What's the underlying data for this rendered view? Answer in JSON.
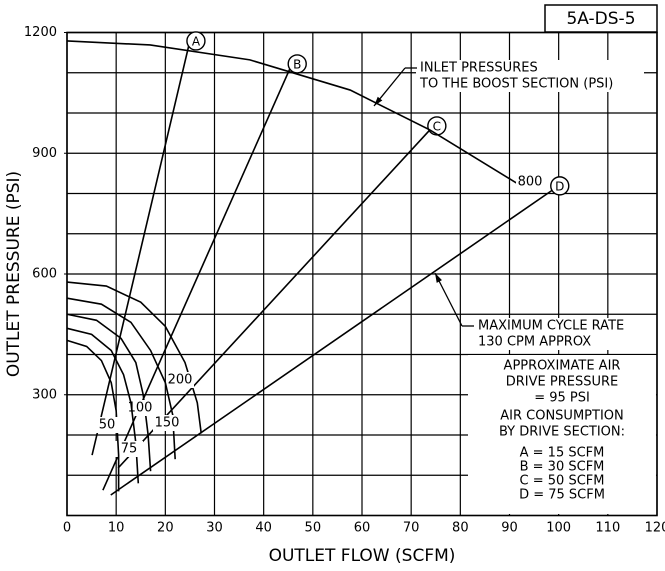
{
  "chart_data": {
    "type": "line",
    "figure_id": "5A-DS-5",
    "x_label": "OUTLET FLOW (SCFM)",
    "y_label": "OUTLET PRESSURE (PSI)",
    "xlim": [
      0,
      120
    ],
    "ylim": [
      0,
      1200
    ],
    "xticks": [
      0,
      10,
      20,
      30,
      40,
      50,
      60,
      70,
      80,
      90,
      100,
      110,
      120
    ],
    "yticks": [
      300,
      600,
      900,
      1200
    ],
    "ygrid": [
      100,
      200,
      300,
      400,
      500,
      600,
      700,
      800,
      900,
      1000,
      1100,
      1200
    ],
    "grid": true,
    "color": "#000000",
    "series": [
      {
        "name": "A",
        "x": [
          5.1,
          24.8
        ],
        "values": [
          150,
          1169
        ]
      },
      {
        "name": "B",
        "x": [
          7.3,
          45.4
        ],
        "values": [
          63,
          1112
        ]
      },
      {
        "name": "C",
        "x": [
          10.4,
          73.8
        ],
        "values": [
          118,
          958
        ]
      },
      {
        "name": "D",
        "x": [
          8.9,
          98.8
        ],
        "values": [
          51,
          809
        ]
      }
    ],
    "inlet_curves": [
      {
        "name": "800",
        "x": [
          0,
          16.9,
          37.2,
          57.6,
          73.8,
          92.1
        ],
        "values": [
          1179,
          1169,
          1132,
          1057,
          958,
          821
        ]
      },
      {
        "name": "200",
        "x": [
          0,
          8,
          15,
          20,
          24,
          26.5,
          27.3
        ],
        "values": [
          580,
          570,
          530,
          470,
          380,
          280,
          204
        ]
      },
      {
        "name": "150",
        "x": [
          0,
          7,
          13,
          17,
          20,
          21.5,
          22
        ],
        "values": [
          540,
          525,
          480,
          410,
          330,
          250,
          140
        ]
      },
      {
        "name": "100",
        "x": [
          0,
          6,
          11,
          14,
          15.5,
          16.5,
          17
        ],
        "values": [
          500,
          485,
          440,
          380,
          300,
          200,
          110
        ]
      },
      {
        "name": "75",
        "x": [
          0,
          5,
          9,
          11.5,
          13,
          14,
          14.5
        ],
        "values": [
          465,
          450,
          410,
          350,
          280,
          180,
          80
        ]
      },
      {
        "name": "50",
        "x": [
          0,
          4,
          7,
          9,
          10,
          10.5,
          10.5
        ],
        "values": [
          435,
          420,
          385,
          330,
          260,
          150,
          60
        ]
      }
    ],
    "annotations": {
      "inlet": [
        "INLET PRESSURES",
        "TO THE BOOST SECTION (PSI)"
      ],
      "cycle": [
        "MAXIMUM CYCLE RATE",
        "130 CPM APPROX"
      ]
    },
    "notes": [
      "APPROXIMATE AIR",
      "DRIVE PRESSURE",
      "= 95 PSI",
      "AIR CONSUMPTION",
      "BY DRIVE SECTION:",
      "A  =  15  SCFM",
      "B  =  30  SCFM",
      "C  =  50  SCFM",
      "D  =  75  SCFM"
    ]
  }
}
